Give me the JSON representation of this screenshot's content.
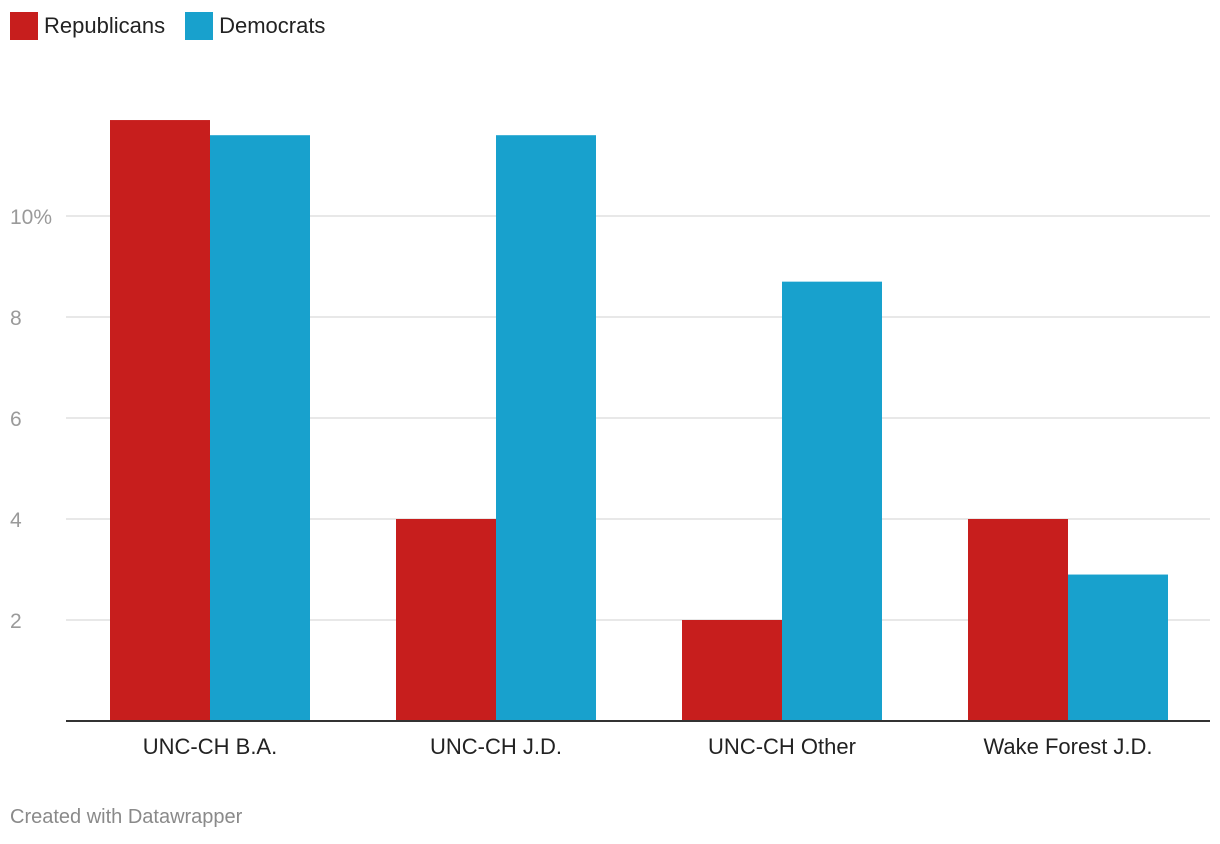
{
  "chart_data": {
    "type": "bar",
    "categories": [
      "UNC-CH B.A.",
      "UNC-CH J.D.",
      "UNC-CH Other",
      "Wake Forest J.D."
    ],
    "series": [
      {
        "name": "Republicans",
        "color": "#c71e1d",
        "values": [
          11.9,
          4.0,
          2.0,
          4.0
        ]
      },
      {
        "name": "Democrats",
        "color": "#18a1cd",
        "values": [
          11.6,
          11.6,
          8.7,
          2.9
        ]
      }
    ],
    "yticks": [
      {
        "value": 2,
        "label": "2"
      },
      {
        "value": 4,
        "label": "4"
      },
      {
        "value": 6,
        "label": "6"
      },
      {
        "value": 8,
        "label": "8"
      },
      {
        "value": 10,
        "label": "10%"
      }
    ],
    "ylim": [
      0,
      12
    ],
    "grid": true,
    "legend": "top-left"
  },
  "footer": {
    "credit": "Created with Datawrapper"
  }
}
